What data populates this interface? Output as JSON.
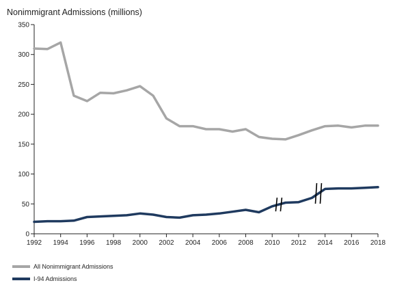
{
  "chart_data": {
    "type": "line",
    "title": "",
    "ylabel": "Nonimmigrant Admissions (millions)",
    "xlabel": "",
    "ylim": [
      0,
      350
    ],
    "xlim": [
      1992,
      2018
    ],
    "yticks": [
      0,
      50,
      100,
      150,
      200,
      250,
      300,
      350
    ],
    "xticks": [
      1992,
      1994,
      1996,
      1998,
      2000,
      2002,
      2004,
      2006,
      2008,
      2010,
      2012,
      2014,
      2016,
      2018
    ],
    "grid": false,
    "legend_position": "bottom-left",
    "series": [
      {
        "name": "All Nonimmigrant Admissions",
        "color": "#a6a6a6",
        "x": [
          1992,
          1993,
          1994,
          1995,
          1996,
          1997,
          1998,
          1999,
          2000,
          2001,
          2002,
          2003,
          2004,
          2005,
          2006,
          2007,
          2008,
          2009,
          2010,
          2011,
          2012,
          2013,
          2014,
          2015,
          2016,
          2017,
          2018
        ],
        "values": [
          310,
          309,
          320,
          231,
          222,
          236,
          235,
          240,
          247,
          231,
          193,
          180,
          180,
          175,
          175,
          171,
          175,
          162,
          159,
          158,
          165,
          173,
          180,
          181,
          178,
          181,
          181
        ]
      },
      {
        "name": "I-94 Admissions",
        "color": "#1f3a5f",
        "x": [
          1992,
          1993,
          1994,
          1995,
          1996,
          1997,
          1998,
          1999,
          2000,
          2001,
          2002,
          2003,
          2004,
          2005,
          2006,
          2007,
          2008,
          2009,
          2010,
          2011,
          2012,
          2013,
          2014,
          2015,
          2016,
          2017,
          2018
        ],
        "values": [
          20,
          21,
          21,
          22,
          28,
          29,
          30,
          31,
          34,
          32,
          28,
          27,
          31,
          32,
          34,
          37,
          40,
          36,
          46,
          52,
          53,
          60,
          75,
          76,
          76,
          77,
          78
        ]
      }
    ],
    "breaks": [
      2010.5,
      2013.5
    ]
  }
}
